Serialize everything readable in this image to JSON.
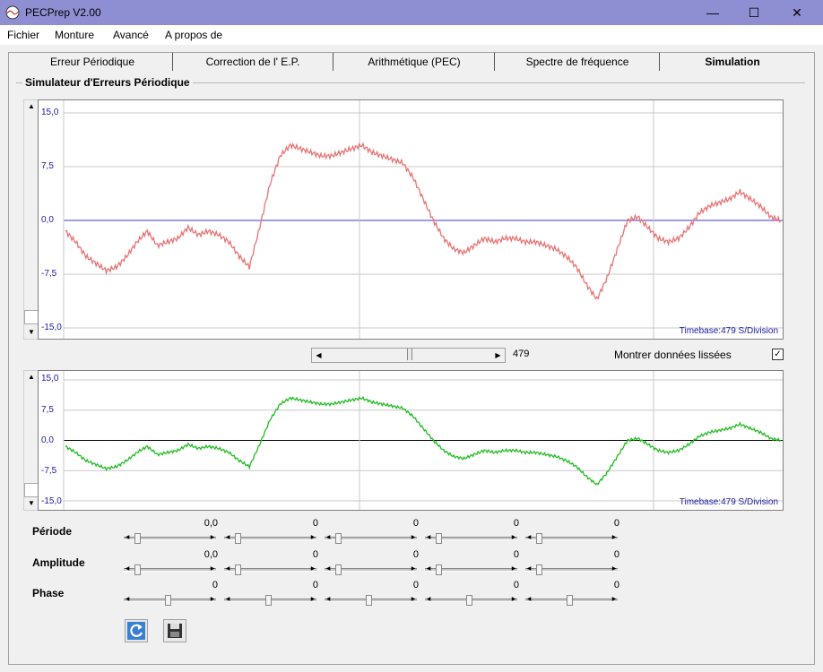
{
  "app": {
    "title": "PECPrep V2.00"
  },
  "window_controls": {
    "minimize": "—",
    "maximize": "☐",
    "close": "✕"
  },
  "menu": [
    "Fichier",
    "Monture",
    "Avancé",
    "A propos de"
  ],
  "tabs": [
    {
      "label": "Erreur Périodique",
      "active": false
    },
    {
      "label": "Correction de l' E.P.",
      "active": false
    },
    {
      "label": "Arithmétique (PEC)",
      "active": false
    },
    {
      "label": "Spectre de fréquence",
      "active": false
    },
    {
      "label": "Simulation",
      "active": true
    }
  ],
  "group_title": "Simulateur d'Erreurs Périodique",
  "plots": {
    "top": {
      "timebase": "Timebase:479 S/Division",
      "yticks": [
        "15,0",
        "7,5",
        "0,0",
        "-7,5",
        "-15,0"
      ],
      "color": "#e87373"
    },
    "bottom": {
      "timebase": "Timebase:479 S/Division",
      "yticks": [
        "15,0",
        "7,5",
        "0,0",
        "-7,5",
        "-15,0"
      ],
      "color": "#22bb22"
    }
  },
  "scroll": {
    "value": "479",
    "position": 0.5
  },
  "smoothed": {
    "label": "Montrer données lissées",
    "checked": true,
    "mark": "✓"
  },
  "params": {
    "rows": [
      {
        "label": "Période",
        "values": [
          "0,0",
          "0",
          "0",
          "0",
          "0"
        ]
      },
      {
        "label": "Amplitude",
        "values": [
          "0,0",
          "0",
          "0",
          "0",
          "0"
        ]
      },
      {
        "label": "Phase",
        "values": [
          "0",
          "0",
          "0",
          "0",
          "0"
        ]
      }
    ]
  },
  "buttons": {
    "refresh": "refresh-icon",
    "save": "save-icon"
  },
  "chart_data": {
    "type": "line",
    "ylim": [
      -15,
      15
    ],
    "yticks": [
      15,
      7.5,
      0,
      -7.5,
      -15
    ],
    "x": [
      0,
      1,
      2,
      3,
      4,
      5,
      6,
      7,
      8,
      9,
      10,
      11,
      12,
      13,
      14,
      15,
      16,
      17,
      18,
      19,
      20,
      21,
      22,
      23,
      24,
      25,
      26,
      27,
      28,
      29,
      30,
      31,
      32,
      33,
      34,
      35,
      36,
      37,
      38,
      39,
      40,
      41,
      42,
      43,
      44,
      45,
      46,
      47,
      48,
      49,
      50,
      51,
      52,
      53,
      54,
      55,
      56,
      57,
      58,
      59,
      60,
      61,
      62,
      63,
      64,
      65,
      66,
      67,
      68,
      69,
      70
    ],
    "series": [
      {
        "values": [
          -1.5,
          -3,
          -5,
          -6,
          -7,
          -6.5,
          -5,
          -3,
          -1.5,
          -3.5,
          -3,
          -2.5,
          -1,
          -2,
          -1.5,
          -2,
          -3,
          -5,
          -6.5,
          -1,
          5,
          9,
          10.5,
          10,
          9.5,
          9,
          9,
          9.5,
          10,
          10.5,
          9.5,
          9,
          8.5,
          8,
          6,
          3,
          0,
          -2.5,
          -4,
          -4.5,
          -3.5,
          -2.5,
          -3,
          -2.5,
          -2.5,
          -3,
          -3,
          -3.5,
          -4,
          -5,
          -6.5,
          -9,
          -11,
          -8,
          -4,
          0,
          0.5,
          -1,
          -2.5,
          -3,
          -2.5,
          -1,
          1,
          2,
          2.5,
          3,
          4,
          3,
          2,
          0.5,
          0
        ]
      }
    ]
  }
}
